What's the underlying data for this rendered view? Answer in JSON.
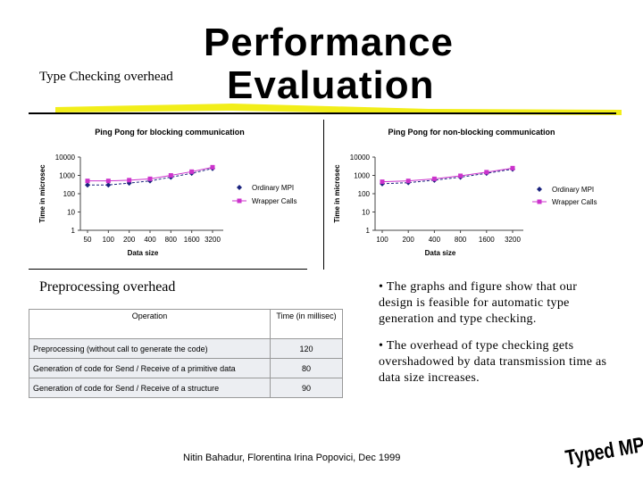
{
  "slide": {
    "title_line1": "Performance",
    "title_line2": "Evaluation",
    "subtitle_type_checking": "Type Checking overhead",
    "subtitle_preprocessing": "Preprocessing overhead",
    "bullets": [
      "• The graphs and figure show that our design is feasible for automatic type generation and type checking.",
      "• The overhead of type checking gets overshadowed by data transmission time as data size increases."
    ],
    "footer": "Nitin Bahadur, Florentina Irina Popovici, Dec 1999",
    "logo_text": "Typed MPI"
  },
  "colors": {
    "accent_yellow": "#f2ee1a",
    "series_ordinary": "#1a237e",
    "series_wrapper": "#cc33cc",
    "table_body_bg": "#eceef2"
  },
  "table": {
    "headers": [
      "Operation",
      "Time (in millisec)"
    ],
    "rows": [
      {
        "operation": "Preprocessing (without call to generate the code)",
        "time": "120"
      },
      {
        "operation": "Generation of code for Send / Receive of a primitive data",
        "time": "80"
      },
      {
        "operation": "Generation of code for Send / Receive of a structure",
        "time": "90"
      }
    ]
  },
  "chart_data": [
    {
      "type": "line",
      "title": "Ping Pong for blocking communication",
      "xlabel": "Data size",
      "ylabel": "Time in microsec",
      "yscale": "log",
      "ylim": [
        1,
        10000
      ],
      "yticks": [
        "10000",
        "1000",
        "100",
        "10",
        "1"
      ],
      "categories": [
        "50",
        "100",
        "200",
        "400",
        "800",
        "1600",
        "3200"
      ],
      "legend_position": "right",
      "series": [
        {
          "name": "Ordinary MPI",
          "marker": "diamond",
          "values": [
            300,
            300,
            380,
            500,
            800,
            1300,
            2400
          ]
        },
        {
          "name": "Wrapper Calls",
          "marker": "square",
          "values": [
            500,
            500,
            550,
            650,
            1000,
            1600,
            2800
          ]
        }
      ]
    },
    {
      "type": "line",
      "title": "Ping Pong for non-blocking communication",
      "xlabel": "Data size",
      "ylabel": "Time in microsec",
      "yscale": "log",
      "ylim": [
        1,
        10000
      ],
      "yticks": [
        "10000",
        "1000",
        "100",
        "10",
        "1"
      ],
      "categories": [
        "100",
        "200",
        "400",
        "800",
        "1600",
        "3200"
      ],
      "legend_position": "right",
      "series": [
        {
          "name": "Ordinary MPI",
          "marker": "diamond",
          "values": [
            350,
            400,
            550,
            800,
            1300,
            2200
          ]
        },
        {
          "name": "Wrapper Calls",
          "marker": "square",
          "values": [
            450,
            500,
            650,
            950,
            1500,
            2500
          ]
        }
      ]
    }
  ]
}
